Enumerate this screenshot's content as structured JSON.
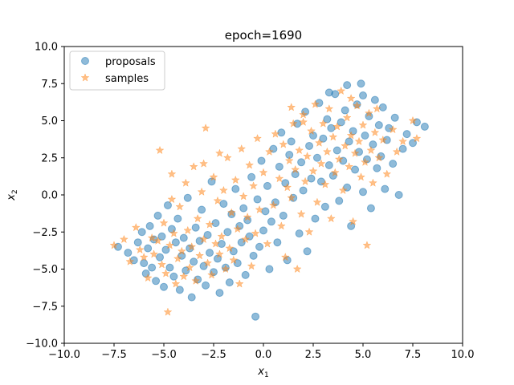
{
  "chart_data": {
    "type": "scatter",
    "title": "epoch=1690",
    "xlabel": "x",
    "xlabel_subscript": "1",
    "ylabel": "x",
    "ylabel_subscript": "2",
    "xlim": [
      -10.0,
      10.0
    ],
    "ylim": [
      -10.0,
      10.0
    ],
    "x_ticks": [
      -10.0,
      -7.5,
      -5.0,
      -2.5,
      0.0,
      2.5,
      5.0,
      7.5,
      10.0
    ],
    "x_tick_labels": [
      "−10.0",
      "−7.5",
      "−5.0",
      "−2.5",
      "0.0",
      "2.5",
      "5.0",
      "7.5",
      "10.0"
    ],
    "y_ticks": [
      -10.0,
      -7.5,
      -5.0,
      -2.5,
      0.0,
      2.5,
      5.0,
      7.5,
      10.0
    ],
    "y_tick_labels": [
      "−10.0",
      "−7.5",
      "−5.0",
      "−2.5",
      "0.0",
      "2.5",
      "5.0",
      "7.5",
      "10.0"
    ],
    "grid": false,
    "legend_position": "top-left",
    "series": [
      {
        "name": "proposals",
        "marker": "circle",
        "color": "#1f77b4",
        "alpha": 0.5,
        "points": [
          [
            -7.3,
            -3.5
          ],
          [
            -6.8,
            -3.9
          ],
          [
            -6.5,
            -4.4
          ],
          [
            -6.3,
            -3.2
          ],
          [
            -6.1,
            -2.5
          ],
          [
            -6.0,
            -4.6
          ],
          [
            -5.9,
            -5.3
          ],
          [
            -5.8,
            -3.6
          ],
          [
            -5.7,
            -2.1
          ],
          [
            -5.6,
            -4.9
          ],
          [
            -5.5,
            -3.0
          ],
          [
            -5.4,
            -5.8
          ],
          [
            -5.3,
            -1.4
          ],
          [
            -5.2,
            -4.2
          ],
          [
            -5.1,
            -2.8
          ],
          [
            -5.0,
            -6.2
          ],
          [
            -4.9,
            -3.7
          ],
          [
            -4.8,
            -0.7
          ],
          [
            -4.7,
            -4.9
          ],
          [
            -4.6,
            -2.3
          ],
          [
            -4.5,
            -5.5
          ],
          [
            -4.4,
            -3.2
          ],
          [
            -4.3,
            -1.6
          ],
          [
            -4.2,
            -6.4
          ],
          [
            -4.1,
            -4.1
          ],
          [
            -4.0,
            -2.9
          ],
          [
            -3.9,
            -5.1
          ],
          [
            -3.8,
            -0.2
          ],
          [
            -3.7,
            -3.6
          ],
          [
            -3.6,
            -6.9
          ],
          [
            -3.5,
            -4.5
          ],
          [
            -3.4,
            -2.2
          ],
          [
            -3.3,
            -5.7
          ],
          [
            -3.2,
            -3.1
          ],
          [
            -3.1,
            -1.0
          ],
          [
            -3.0,
            -4.8
          ],
          [
            -2.9,
            -6.1
          ],
          [
            -2.8,
            -2.7
          ],
          [
            -2.7,
            -3.9
          ],
          [
            -2.6,
            0.9
          ],
          [
            -2.5,
            -5.2
          ],
          [
            -2.4,
            -1.9
          ],
          [
            -2.3,
            -4.3
          ],
          [
            -2.2,
            -6.6
          ],
          [
            -2.1,
            -3.3
          ],
          [
            -2.0,
            -0.6
          ],
          [
            -1.9,
            -4.9
          ],
          [
            -1.8,
            -2.5
          ],
          [
            -1.7,
            -5.9
          ],
          [
            -1.6,
            -1.3
          ],
          [
            -1.5,
            -3.8
          ],
          [
            -1.4,
            0.4
          ],
          [
            -1.3,
            -4.6
          ],
          [
            -1.2,
            -2.1
          ],
          [
            -1.1,
            -3.2
          ],
          [
            -1.0,
            -0.9
          ],
          [
            -0.9,
            -5.4
          ],
          [
            -0.8,
            -1.7
          ],
          [
            -0.7,
            -2.8
          ],
          [
            -0.6,
            1.2
          ],
          [
            -0.5,
            -4.1
          ],
          [
            -0.4,
            -8.2
          ],
          [
            -0.3,
            -0.3
          ],
          [
            -0.2,
            -3.5
          ],
          [
            -0.1,
            2.3
          ],
          [
            0.0,
            -2.4
          ],
          [
            0.1,
            -1.1
          ],
          [
            0.2,
            0.6
          ],
          [
            0.3,
            -5.0
          ],
          [
            0.4,
            -1.8
          ],
          [
            0.5,
            3.1
          ],
          [
            0.6,
            -0.5
          ],
          [
            0.7,
            -3.2
          ],
          [
            0.8,
            1.9
          ],
          [
            0.9,
            4.2
          ],
          [
            1.0,
            -1.4
          ],
          [
            1.1,
            0.8
          ],
          [
            1.2,
            -4.4
          ],
          [
            1.3,
            2.7
          ],
          [
            1.4,
            3.6
          ],
          [
            1.5,
            -0.2
          ],
          [
            1.6,
            1.4
          ],
          [
            1.7,
            4.8
          ],
          [
            1.8,
            -2.6
          ],
          [
            1.9,
            2.2
          ],
          [
            2.0,
            0.3
          ],
          [
            2.1,
            5.6
          ],
          [
            2.2,
            -3.8
          ],
          [
            2.3,
            3.3
          ],
          [
            2.4,
            1.1
          ],
          [
            2.5,
            4.0
          ],
          [
            2.6,
            -1.6
          ],
          [
            2.7,
            2.5
          ],
          [
            2.8,
            6.2
          ],
          [
            2.9,
            0.9
          ],
          [
            3.0,
            3.8
          ],
          [
            3.1,
            -0.8
          ],
          [
            3.2,
            5.1
          ],
          [
            3.3,
            2.0
          ],
          [
            3.4,
            4.5
          ],
          [
            3.5,
            1.3
          ],
          [
            3.6,
            6.8
          ],
          [
            3.7,
            3.0
          ],
          [
            3.8,
            -0.4
          ],
          [
            3.9,
            4.9
          ],
          [
            4.0,
            2.3
          ],
          [
            4.1,
            5.7
          ],
          [
            4.2,
            0.5
          ],
          [
            4.3,
            3.6
          ],
          [
            4.4,
            -2.1
          ],
          [
            4.5,
            4.3
          ],
          [
            4.6,
            1.7
          ],
          [
            4.7,
            6.1
          ],
          [
            4.8,
            2.9
          ],
          [
            4.9,
            7.5
          ],
          [
            5.0,
            0.2
          ],
          [
            5.1,
            4.0
          ],
          [
            5.2,
            2.4
          ],
          [
            5.3,
            5.3
          ],
          [
            5.4,
            -0.9
          ],
          [
            5.5,
            3.4
          ],
          [
            5.6,
            6.4
          ],
          [
            5.7,
            1.8
          ],
          [
            5.8,
            4.7
          ],
          [
            5.9,
            2.6
          ],
          [
            6.0,
            5.9
          ],
          [
            6.1,
            0.4
          ],
          [
            6.2,
            3.7
          ],
          [
            6.3,
            4.5
          ],
          [
            6.5,
            2.1
          ],
          [
            6.6,
            5.2
          ],
          [
            6.8,
            0.0
          ],
          [
            7.0,
            3.1
          ],
          [
            7.2,
            4.1
          ],
          [
            7.5,
            3.5
          ],
          [
            7.7,
            4.9
          ],
          [
            8.1,
            4.6
          ],
          [
            5.0,
            6.7
          ],
          [
            4.2,
            7.4
          ],
          [
            3.3,
            6.9
          ]
        ]
      },
      {
        "name": "samples",
        "marker": "star",
        "color": "#ff7f0e",
        "alpha": 0.5,
        "points": [
          [
            -7.5,
            -3.4
          ],
          [
            -7.0,
            -3.0
          ],
          [
            -6.7,
            -4.5
          ],
          [
            -6.4,
            -2.2
          ],
          [
            -6.2,
            -3.7
          ],
          [
            -6.0,
            -4.2
          ],
          [
            -5.8,
            -5.6
          ],
          [
            -5.6,
            -2.9
          ],
          [
            -5.5,
            -4.0
          ],
          [
            -5.3,
            -3.1
          ],
          [
            -5.2,
            3.0
          ],
          [
            -5.1,
            -4.7
          ],
          [
            -5.0,
            -1.9
          ],
          [
            -4.9,
            -5.3
          ],
          [
            -4.8,
            -7.9
          ],
          [
            -4.7,
            -3.4
          ],
          [
            -4.6,
            1.4
          ],
          [
            -4.5,
            -2.6
          ],
          [
            -4.4,
            -6.0
          ],
          [
            -4.3,
            -4.3
          ],
          [
            -4.2,
            -0.8
          ],
          [
            -4.1,
            -3.8
          ],
          [
            -4.0,
            -5.5
          ],
          [
            -3.9,
            0.8
          ],
          [
            -3.8,
            -2.4
          ],
          [
            -3.7,
            -4.9
          ],
          [
            -3.6,
            -3.5
          ],
          [
            -3.5,
            1.9
          ],
          [
            -3.4,
            -5.8
          ],
          [
            -3.3,
            -1.6
          ],
          [
            -3.2,
            -4.1
          ],
          [
            -3.1,
            0.2
          ],
          [
            -3.0,
            -3.0
          ],
          [
            -2.9,
            4.5
          ],
          [
            -2.8,
            -4.6
          ],
          [
            -2.7,
            -2.0
          ],
          [
            -2.6,
            -5.4
          ],
          [
            -2.5,
            1.2
          ],
          [
            -2.4,
            -3.3
          ],
          [
            -2.3,
            -0.4
          ],
          [
            -2.2,
            -4.0
          ],
          [
            -2.1,
            -2.8
          ],
          [
            -2.0,
            0.3
          ],
          [
            -1.9,
            -5.0
          ],
          [
            -1.8,
            2.5
          ],
          [
            -1.7,
            -3.6
          ],
          [
            -1.6,
            -1.2
          ],
          [
            -1.5,
            -4.4
          ],
          [
            -1.4,
            1.0
          ],
          [
            -1.3,
            -2.3
          ],
          [
            -1.2,
            -6.0
          ],
          [
            -1.1,
            3.1
          ],
          [
            -1.0,
            -0.1
          ],
          [
            -0.9,
            -3.0
          ],
          [
            -0.8,
            -1.5
          ],
          [
            -0.7,
            2.0
          ],
          [
            -0.6,
            -4.8
          ],
          [
            -0.5,
            0.6
          ],
          [
            -0.4,
            -2.6
          ],
          [
            -0.3,
            3.8
          ],
          [
            -0.2,
            -1.0
          ],
          [
            0.0,
            1.5
          ],
          [
            0.2,
            -3.3
          ],
          [
            0.3,
            2.9
          ],
          [
            0.5,
            -0.7
          ],
          [
            0.6,
            4.1
          ],
          [
            0.8,
            1.1
          ],
          [
            0.9,
            -2.1
          ],
          [
            1.0,
            3.4
          ],
          [
            1.1,
            -4.2
          ],
          [
            1.2,
            0.5
          ],
          [
            1.3,
            2.3
          ],
          [
            1.4,
            -0.2
          ],
          [
            1.5,
            4.8
          ],
          [
            1.6,
            1.7
          ],
          [
            1.7,
            -5.0
          ],
          [
            1.8,
            3.0
          ],
          [
            1.9,
            -1.3
          ],
          [
            2.0,
            5.4
          ],
          [
            2.1,
            0.9
          ],
          [
            2.2,
            2.6
          ],
          [
            2.3,
            -2.5
          ],
          [
            2.4,
            4.3
          ],
          [
            2.5,
            1.6
          ],
          [
            2.6,
            6.1
          ],
          [
            2.7,
            -0.5
          ],
          [
            2.8,
            3.5
          ],
          [
            2.9,
            2.1
          ],
          [
            3.0,
            4.8
          ],
          [
            3.1,
            0.7
          ],
          [
            3.2,
            2.9
          ],
          [
            3.3,
            5.8
          ],
          [
            3.4,
            -1.6
          ],
          [
            3.5,
            3.9
          ],
          [
            3.6,
            1.5
          ],
          [
            3.7,
            4.6
          ],
          [
            3.8,
            2.4
          ],
          [
            3.9,
            7.0
          ],
          [
            4.0,
            0.3
          ],
          [
            4.1,
            3.3
          ],
          [
            4.2,
            5.2
          ],
          [
            4.3,
            1.9
          ],
          [
            4.4,
            4.0
          ],
          [
            4.5,
            -1.8
          ],
          [
            4.6,
            2.8
          ],
          [
            4.7,
            6.0
          ],
          [
            4.8,
            3.6
          ],
          [
            4.9,
            1.2
          ],
          [
            5.0,
            4.7
          ],
          [
            5.1,
            2.2
          ],
          [
            5.2,
            -3.4
          ],
          [
            5.3,
            5.5
          ],
          [
            5.4,
            3.0
          ],
          [
            5.5,
            0.8
          ],
          [
            5.6,
            4.2
          ],
          [
            5.8,
            2.5
          ],
          [
            6.0,
            3.7
          ],
          [
            6.2,
            1.4
          ],
          [
            6.5,
            4.4
          ],
          [
            6.7,
            2.9
          ],
          [
            7.0,
            3.6
          ],
          [
            7.5,
            5.0
          ],
          [
            7.7,
            3.8
          ],
          [
            5.7,
            5.8
          ],
          [
            4.4,
            6.5
          ],
          [
            2.0,
            4.9
          ],
          [
            1.4,
            5.9
          ],
          [
            -3.0,
            2.1
          ],
          [
            -2.2,
            2.8
          ],
          [
            -4.6,
            -0.3
          ]
        ]
      }
    ]
  }
}
